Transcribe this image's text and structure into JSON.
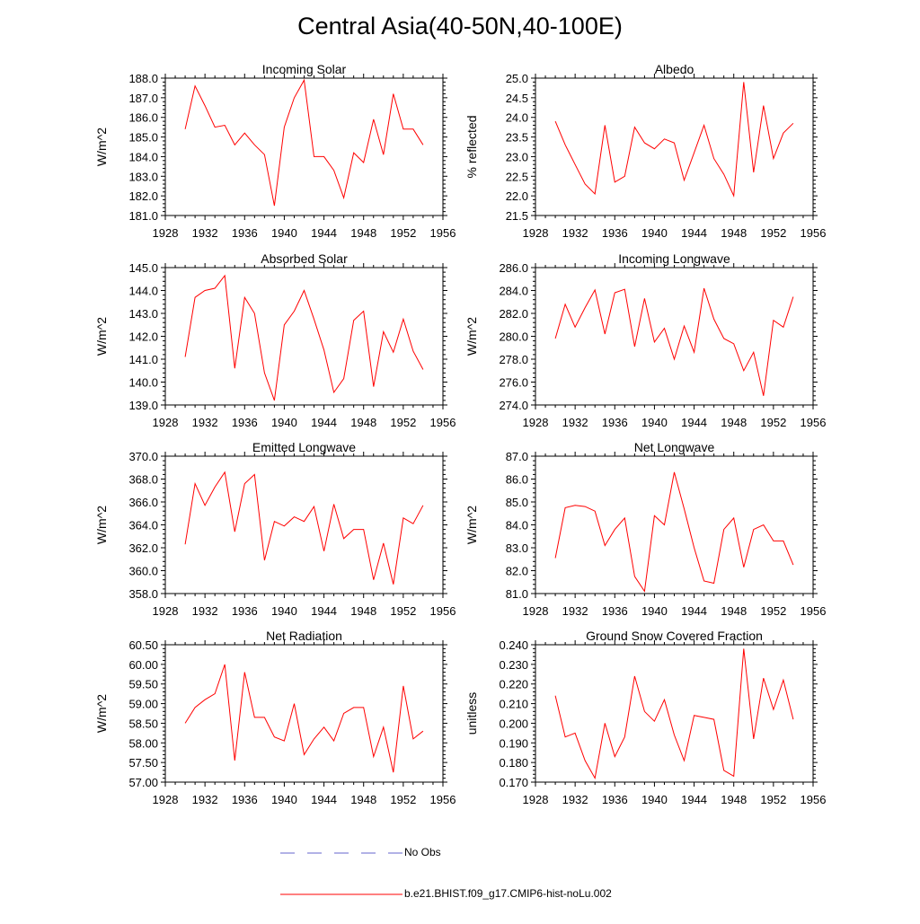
{
  "title": "Central Asia(40-50N,40-100E)",
  "colors": {
    "model": "#ff0000",
    "obs": "#6666cc",
    "axis": "#000000"
  },
  "legend": {
    "obs_label": "No Obs",
    "model_label": "b.e21.BHIST.f09_g17.CMIP6-hist-noLu.002"
  },
  "chart_data": [
    {
      "type": "line",
      "title": "Incoming Solar",
      "ylabel": "W/m^2",
      "xlabel": "",
      "xlim": [
        1928,
        1956
      ],
      "ylim": [
        181,
        188
      ],
      "decimals": 1,
      "xticks": [
        1928,
        1932,
        1936,
        1940,
        1944,
        1948,
        1952,
        1956
      ],
      "yticks": [
        181,
        182,
        183,
        184,
        185,
        186,
        187,
        188
      ],
      "x": [
        1930,
        1931,
        1932,
        1933,
        1934,
        1935,
        1936,
        1937,
        1938,
        1939,
        1940,
        1941,
        1942,
        1943,
        1944,
        1945,
        1946,
        1947,
        1948,
        1949,
        1950,
        1951,
        1952,
        1953,
        1954
      ],
      "series": [
        {
          "name": "b.e21.BHIST.f09_g17.CMIP6-hist-noLu.002",
          "values": [
            185.4,
            187.6,
            186.6,
            185.5,
            185.6,
            184.6,
            185.2,
            184.6,
            184.1,
            181.5,
            185.5,
            187.0,
            187.9,
            184.0,
            184.0,
            183.3,
            181.9,
            184.2,
            183.7,
            185.9,
            184.1,
            187.2,
            185.4,
            185.4,
            184.6
          ]
        }
      ]
    },
    {
      "type": "line",
      "title": "Albedo",
      "ylabel": "% reflected",
      "xlabel": "",
      "xlim": [
        1928,
        1956
      ],
      "ylim": [
        21.5,
        25
      ],
      "decimals": 1,
      "xticks": [
        1928,
        1932,
        1936,
        1940,
        1944,
        1948,
        1952,
        1956
      ],
      "yticks": [
        21.5,
        22,
        22.5,
        23,
        23.5,
        24,
        24.5,
        25
      ],
      "x": [
        1930,
        1931,
        1932,
        1933,
        1934,
        1935,
        1936,
        1937,
        1938,
        1939,
        1940,
        1941,
        1942,
        1943,
        1944,
        1945,
        1946,
        1947,
        1948,
        1949,
        1950,
        1951,
        1952,
        1953,
        1954
      ],
      "series": [
        {
          "name": "b.e21.BHIST.f09_g17.CMIP6-hist-noLu.002",
          "values": [
            23.9,
            23.3,
            22.8,
            22.3,
            22.05,
            23.8,
            22.35,
            22.5,
            23.75,
            23.35,
            23.2,
            23.45,
            23.35,
            22.4,
            23.1,
            23.8,
            22.95,
            22.55,
            22.0,
            24.9,
            22.6,
            24.3,
            22.95,
            23.6,
            23.85
          ]
        }
      ]
    },
    {
      "type": "line",
      "title": "Absorbed Solar",
      "ylabel": "W/m^2",
      "xlabel": "",
      "xlim": [
        1928,
        1956
      ],
      "ylim": [
        139,
        145
      ],
      "decimals": 1,
      "xticks": [
        1928,
        1932,
        1936,
        1940,
        1944,
        1948,
        1952,
        1956
      ],
      "yticks": [
        139,
        140,
        141,
        142,
        143,
        144,
        145
      ],
      "x": [
        1930,
        1931,
        1932,
        1933,
        1934,
        1935,
        1936,
        1937,
        1938,
        1939,
        1940,
        1941,
        1942,
        1943,
        1944,
        1945,
        1946,
        1947,
        1948,
        1949,
        1950,
        1951,
        1952,
        1953,
        1954
      ],
      "series": [
        {
          "name": "b.e21.BHIST.f09_g17.CMIP6-hist-noLu.002",
          "values": [
            141.1,
            143.7,
            144.0,
            144.1,
            144.65,
            140.6,
            143.7,
            143.0,
            140.4,
            139.2,
            142.5,
            143.1,
            144.0,
            142.75,
            141.4,
            139.55,
            140.15,
            142.7,
            143.1,
            139.8,
            142.2,
            141.3,
            142.75,
            141.35,
            140.55
          ]
        }
      ]
    },
    {
      "type": "line",
      "title": "Incoming Longwave",
      "ylabel": "W/m^2",
      "xlabel": "",
      "xlim": [
        1928,
        1956
      ],
      "ylim": [
        274,
        286
      ],
      "decimals": 1,
      "xticks": [
        1928,
        1932,
        1936,
        1940,
        1944,
        1948,
        1952,
        1956
      ],
      "yticks": [
        274,
        276,
        278,
        280,
        282,
        284,
        286
      ],
      "x": [
        1930,
        1931,
        1932,
        1933,
        1934,
        1935,
        1936,
        1937,
        1938,
        1939,
        1940,
        1941,
        1942,
        1943,
        1944,
        1945,
        1946,
        1947,
        1948,
        1949,
        1950,
        1951,
        1952,
        1953,
        1954
      ],
      "series": [
        {
          "name": "b.e21.BHIST.f09_g17.CMIP6-hist-noLu.002",
          "values": [
            279.8,
            282.8,
            280.8,
            282.5,
            284.05,
            280.2,
            283.8,
            284.1,
            279.1,
            283.3,
            279.5,
            280.7,
            278.0,
            280.9,
            278.6,
            284.2,
            281.5,
            279.8,
            279.35,
            277.0,
            278.6,
            274.8,
            281.4,
            280.8,
            283.45
          ]
        }
      ]
    },
    {
      "type": "line",
      "title": "Emitted Longwave",
      "ylabel": "W/m^2",
      "xlabel": "",
      "xlim": [
        1928,
        1956
      ],
      "ylim": [
        358,
        370
      ],
      "decimals": 1,
      "xticks": [
        1928,
        1932,
        1936,
        1940,
        1944,
        1948,
        1952,
        1956
      ],
      "yticks": [
        358,
        360,
        362,
        364,
        366,
        368,
        370
      ],
      "x": [
        1930,
        1931,
        1932,
        1933,
        1934,
        1935,
        1936,
        1937,
        1938,
        1939,
        1940,
        1941,
        1942,
        1943,
        1944,
        1945,
        1946,
        1947,
        1948,
        1949,
        1950,
        1951,
        1952,
        1953,
        1954
      ],
      "series": [
        {
          "name": "b.e21.BHIST.f09_g17.CMIP6-hist-noLu.002",
          "values": [
            362.3,
            367.6,
            365.7,
            367.3,
            368.6,
            363.4,
            367.6,
            368.4,
            360.9,
            364.3,
            363.9,
            364.7,
            364.3,
            365.6,
            361.7,
            365.8,
            362.8,
            363.6,
            363.6,
            359.2,
            362.4,
            358.8,
            364.6,
            364.1,
            365.7
          ]
        }
      ]
    },
    {
      "type": "line",
      "title": "Net Longwave",
      "ylabel": "W/m^2",
      "xlabel": "",
      "xlim": [
        1928,
        1956
      ],
      "ylim": [
        81,
        87
      ],
      "decimals": 1,
      "xticks": [
        1928,
        1932,
        1936,
        1940,
        1944,
        1948,
        1952,
        1956
      ],
      "yticks": [
        81,
        82,
        83,
        84,
        85,
        86,
        87
      ],
      "x": [
        1930,
        1931,
        1932,
        1933,
        1934,
        1935,
        1936,
        1937,
        1938,
        1939,
        1940,
        1941,
        1942,
        1943,
        1944,
        1945,
        1946,
        1947,
        1948,
        1949,
        1950,
        1951,
        1952,
        1953,
        1954
      ],
      "series": [
        {
          "name": "b.e21.BHIST.f09_g17.CMIP6-hist-noLu.002",
          "values": [
            82.55,
            84.75,
            84.85,
            84.8,
            84.6,
            83.1,
            83.8,
            84.3,
            81.75,
            81.1,
            84.4,
            84.0,
            86.3,
            84.7,
            83.0,
            81.55,
            81.45,
            83.8,
            84.3,
            82.15,
            83.8,
            84.0,
            83.3,
            83.3,
            82.25
          ]
        }
      ]
    },
    {
      "type": "line",
      "title": "Net Radiation",
      "ylabel": "W/m^2",
      "xlabel": "",
      "xlim": [
        1928,
        1956
      ],
      "ylim": [
        57,
        60.5
      ],
      "decimals": 2,
      "xticks": [
        1928,
        1932,
        1936,
        1940,
        1944,
        1948,
        1952,
        1956
      ],
      "yticks": [
        57,
        57.5,
        58,
        58.5,
        59,
        59.5,
        60,
        60.5
      ],
      "x": [
        1930,
        1931,
        1932,
        1933,
        1934,
        1935,
        1936,
        1937,
        1938,
        1939,
        1940,
        1941,
        1942,
        1943,
        1944,
        1945,
        1946,
        1947,
        1948,
        1949,
        1950,
        1951,
        1952,
        1953,
        1954
      ],
      "series": [
        {
          "name": "b.e21.BHIST.f09_g17.CMIP6-hist-noLu.002",
          "values": [
            58.5,
            58.9,
            59.1,
            59.25,
            60.0,
            57.55,
            59.8,
            58.65,
            58.65,
            58.15,
            58.05,
            59.0,
            57.7,
            58.1,
            58.4,
            58.05,
            58.75,
            58.9,
            58.9,
            57.65,
            58.4,
            57.25,
            59.45,
            58.1,
            58.3
          ]
        }
      ]
    },
    {
      "type": "line",
      "title": "Ground Snow Covered Fraction",
      "ylabel": "unitless",
      "xlabel": "",
      "xlim": [
        1928,
        1956
      ],
      "ylim": [
        0.17,
        0.24
      ],
      "decimals": 3,
      "xticks": [
        1928,
        1932,
        1936,
        1940,
        1944,
        1948,
        1952,
        1956
      ],
      "yticks": [
        0.17,
        0.18,
        0.19,
        0.2,
        0.21,
        0.22,
        0.23,
        0.24
      ],
      "x": [
        1930,
        1931,
        1932,
        1933,
        1934,
        1935,
        1936,
        1937,
        1938,
        1939,
        1940,
        1941,
        1942,
        1943,
        1944,
        1945,
        1946,
        1947,
        1948,
        1949,
        1950,
        1951,
        1952,
        1953,
        1954
      ],
      "series": [
        {
          "name": "b.e21.BHIST.f09_g17.CMIP6-hist-noLu.002",
          "values": [
            0.214,
            0.193,
            0.195,
            0.181,
            0.172,
            0.2,
            0.183,
            0.193,
            0.224,
            0.206,
            0.201,
            0.212,
            0.194,
            0.181,
            0.204,
            0.203,
            0.202,
            0.176,
            0.173,
            0.238,
            0.192,
            0.223,
            0.207,
            0.222,
            0.202
          ]
        }
      ]
    }
  ]
}
